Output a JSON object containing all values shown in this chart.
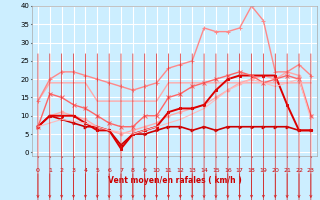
{
  "xlabel": "Vent moyen/en rafales ( km/h )",
  "xlim": [
    -0.5,
    23.5
  ],
  "ylim": [
    -1,
    40
  ],
  "yticks": [
    0,
    5,
    10,
    15,
    20,
    25,
    30,
    35,
    40
  ],
  "xticks": [
    0,
    1,
    2,
    3,
    4,
    5,
    6,
    7,
    8,
    9,
    10,
    11,
    12,
    13,
    14,
    15,
    16,
    17,
    18,
    19,
    20,
    21,
    22,
    23
  ],
  "background_color": "#cceeff",
  "grid_color": "#ffffff",
  "series": [
    {
      "x": [
        0,
        1,
        2,
        3,
        4,
        5,
        6,
        7,
        8,
        9,
        10,
        11,
        12,
        13,
        14,
        15,
        16,
        17,
        18,
        19,
        20,
        21,
        22,
        23
      ],
      "y": [
        7,
        10,
        11,
        10,
        9,
        7,
        6,
        5,
        6,
        7,
        8,
        10,
        11,
        12,
        13,
        15,
        17,
        19,
        20,
        21,
        20,
        22,
        21,
        10
      ],
      "color": "#ffaaaa",
      "linewidth": 1.0,
      "marker": "o",
      "markersize": 2.0,
      "linestyle": "-"
    },
    {
      "x": [
        0,
        1,
        2,
        3,
        4,
        5,
        6,
        7,
        8,
        9,
        10,
        11,
        12,
        13,
        14,
        15,
        16,
        17,
        18,
        19,
        20,
        21,
        22,
        23
      ],
      "y": [
        14,
        19,
        19,
        19,
        19,
        14,
        14,
        14,
        14,
        14,
        14,
        19,
        19,
        19,
        19,
        19,
        19,
        19,
        19,
        19,
        19,
        19,
        19,
        19
      ],
      "color": "#ffaaaa",
      "linewidth": 1.0,
      "marker": null,
      "linestyle": "-"
    },
    {
      "x": [
        0,
        1,
        2,
        3,
        4,
        5,
        6,
        7,
        8,
        9,
        10,
        11,
        12,
        13,
        14,
        15,
        16,
        17,
        18,
        19,
        20,
        21,
        22,
        23
      ],
      "y": [
        7,
        10,
        9,
        8,
        7,
        7,
        6,
        2,
        5,
        5,
        6,
        7,
        7,
        6,
        7,
        6,
        7,
        7,
        7,
        7,
        7,
        7,
        6,
        6
      ],
      "color": "#cc0000",
      "linewidth": 1.2,
      "marker": ">",
      "markersize": 2.0,
      "linestyle": "-"
    },
    {
      "x": [
        0,
        1,
        2,
        3,
        4,
        5,
        6,
        7,
        8,
        9,
        10,
        11,
        12,
        13,
        14,
        15,
        16,
        17,
        18,
        19,
        20,
        21,
        22,
        23
      ],
      "y": [
        7,
        10,
        10,
        10,
        8,
        6,
        6,
        1,
        5,
        6,
        7,
        11,
        12,
        12,
        13,
        17,
        20,
        21,
        21,
        21,
        21,
        13,
        6,
        6
      ],
      "color": "#dd0000",
      "linewidth": 1.4,
      "marker": "s",
      "markersize": 2.0,
      "linestyle": "-"
    },
    {
      "x": [
        0,
        1,
        2,
        3,
        4,
        5,
        6,
        7,
        8,
        9,
        10,
        11,
        12,
        13,
        14,
        15,
        16,
        17,
        18,
        19,
        20,
        21,
        22,
        23
      ],
      "y": [
        14,
        20,
        22,
        22,
        21,
        20,
        19,
        18,
        17,
        18,
        19,
        23,
        24,
        25,
        34,
        33,
        33,
        34,
        40,
        36,
        22,
        22,
        24,
        21
      ],
      "color": "#ff8888",
      "linewidth": 1.0,
      "marker": "+",
      "markersize": 3.5,
      "linestyle": "-"
    },
    {
      "x": [
        0,
        1,
        2,
        3,
        4,
        5,
        6,
        7,
        8,
        9,
        10,
        11,
        12,
        13,
        14,
        15,
        16,
        17,
        18,
        19,
        20,
        21,
        22,
        23
      ],
      "y": [
        7,
        16,
        15,
        13,
        12,
        10,
        8,
        7,
        7,
        10,
        10,
        15,
        16,
        18,
        19,
        20,
        21,
        22,
        21,
        19,
        20,
        21,
        20,
        10
      ],
      "color": "#ff6666",
      "linewidth": 1.0,
      "marker": "x",
      "markersize": 2.5,
      "linestyle": "-"
    },
    {
      "x": [
        0,
        2,
        4,
        6,
        8,
        10,
        12,
        14,
        16,
        18,
        20,
        22,
        23
      ],
      "y": [
        7,
        9,
        8,
        6,
        5,
        7,
        9,
        12,
        17,
        20,
        18,
        20,
        9
      ],
      "color": "#ffbbbb",
      "linewidth": 0.8,
      "marker": null,
      "linestyle": "-"
    }
  ]
}
